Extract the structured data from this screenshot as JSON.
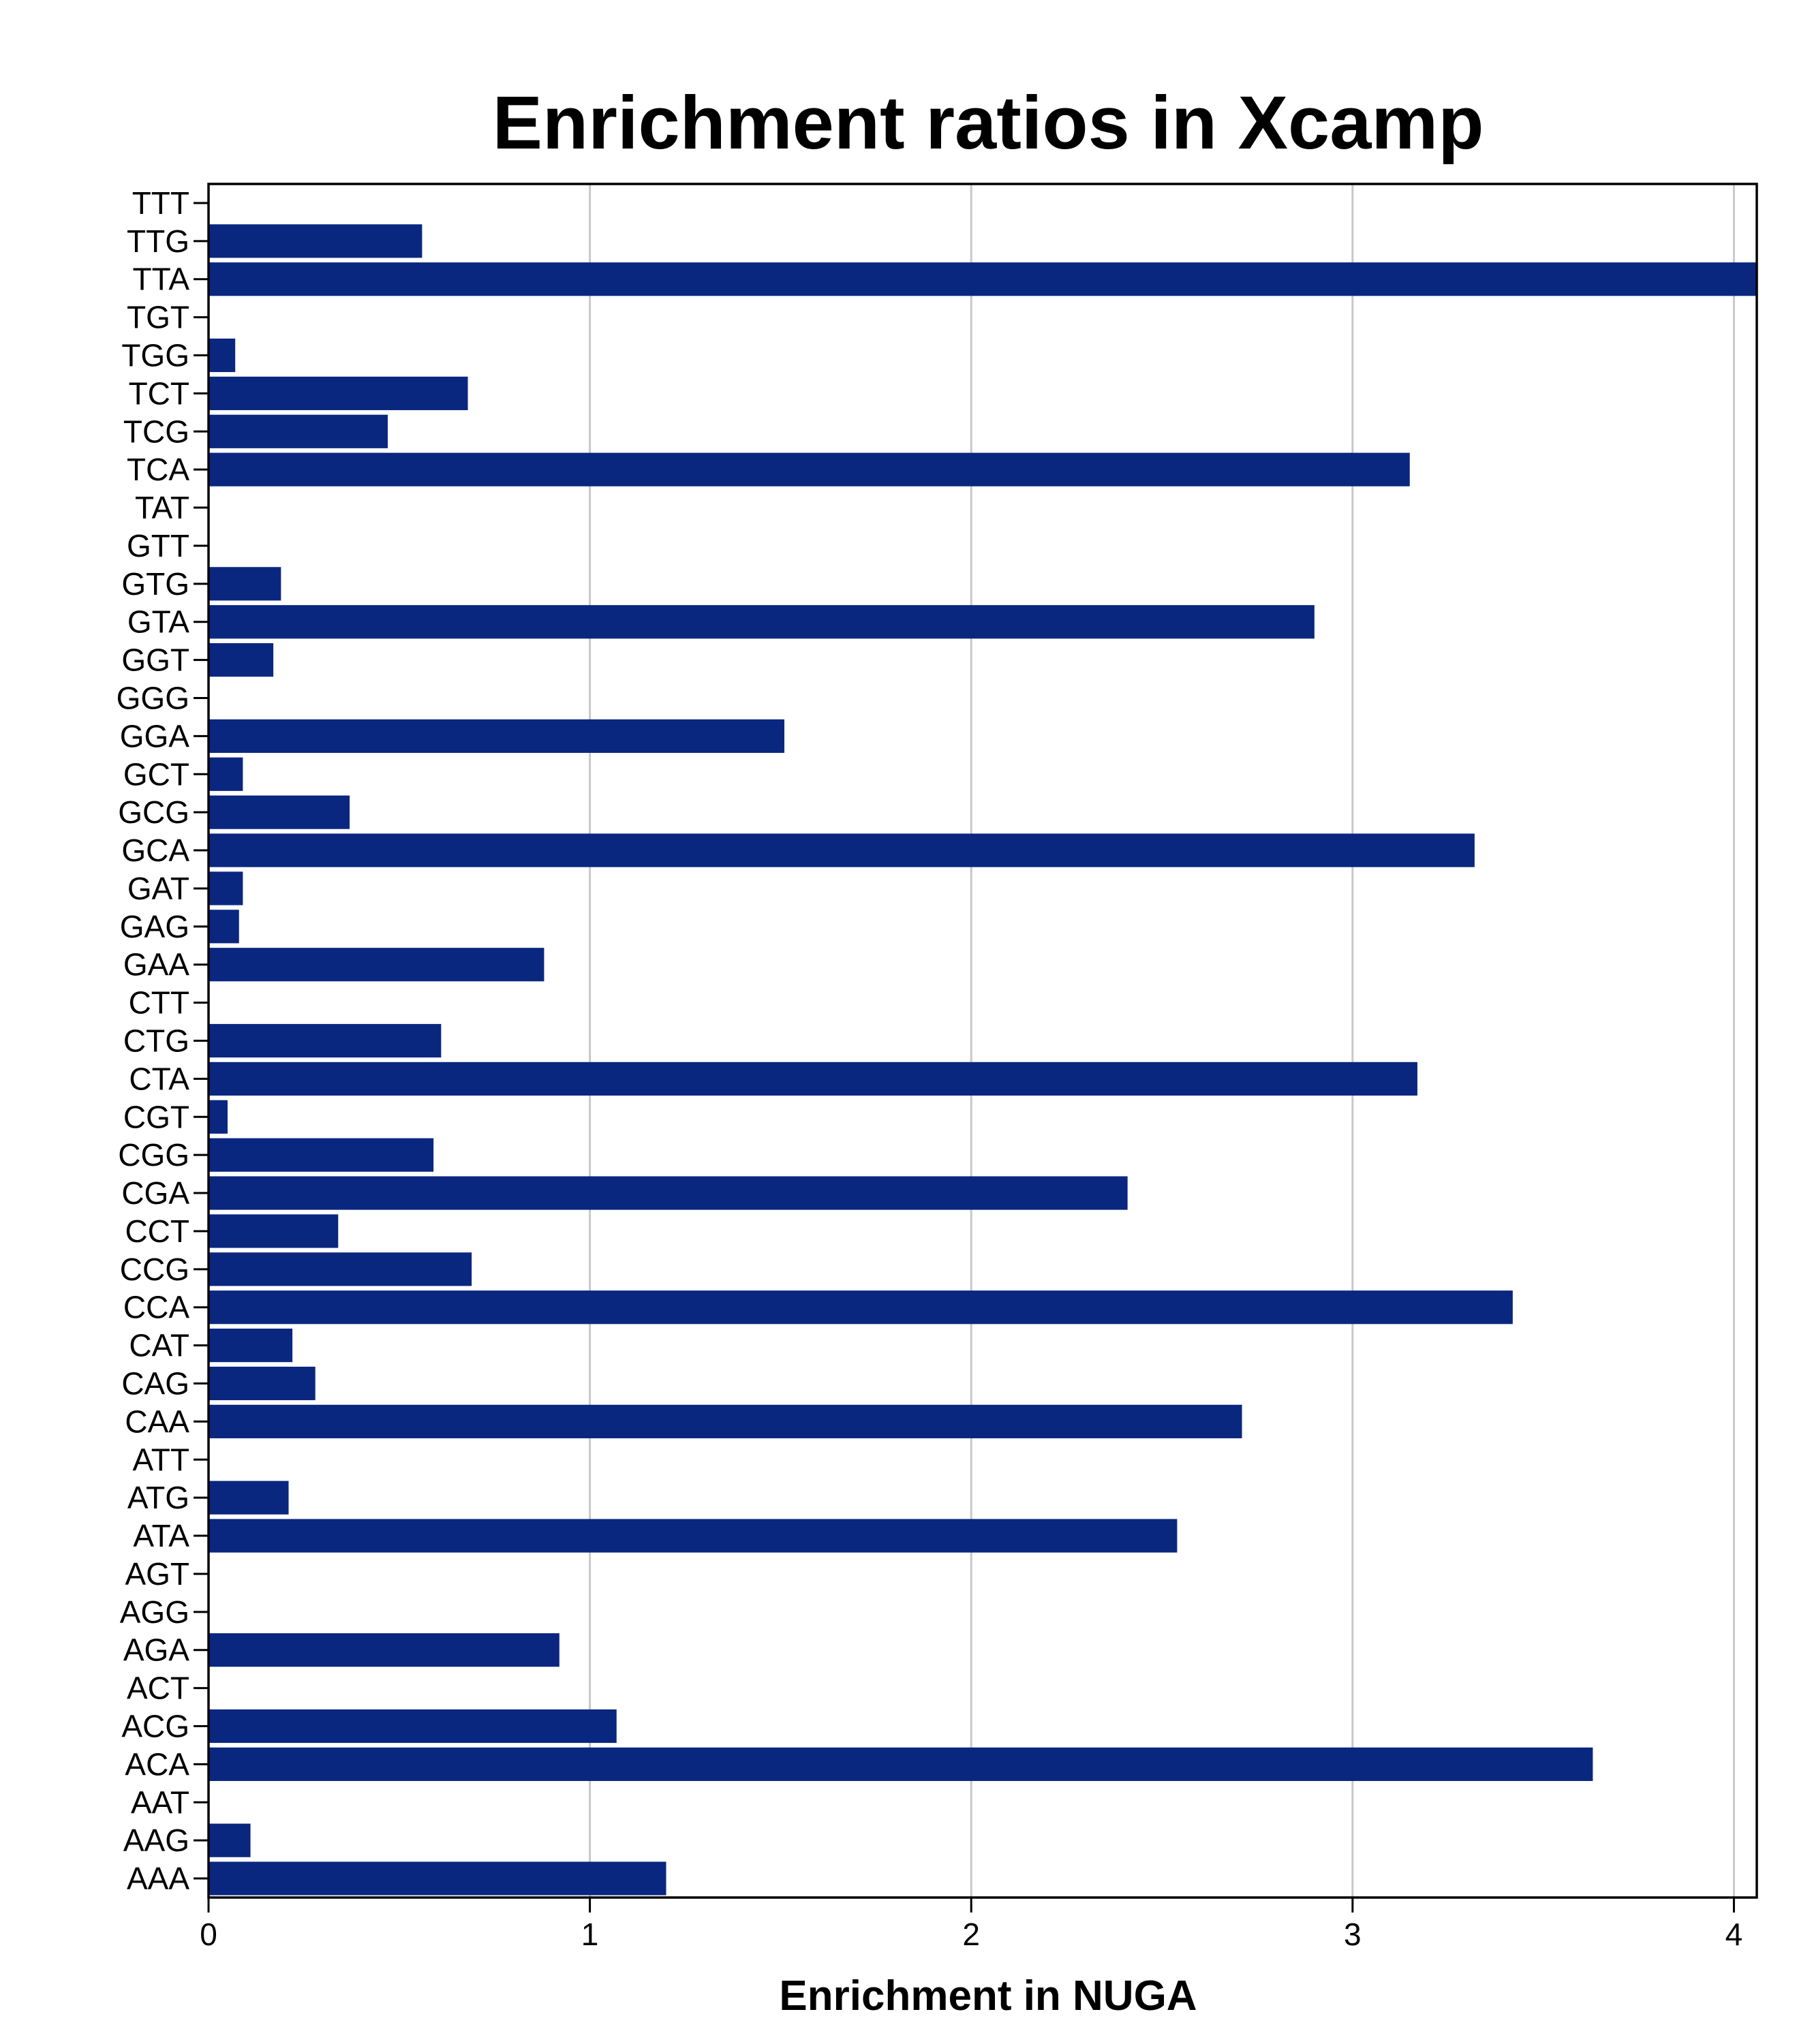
{
  "chart_data": {
    "type": "bar",
    "orientation": "horizontal",
    "title": "Enrichment ratios in Xcamp",
    "xlabel": "Enrichment in NUGA",
    "ylabel": "",
    "xlim": [
      0,
      4.06
    ],
    "xticks": [
      "0",
      "1",
      "2",
      "3",
      "4"
    ],
    "grid": "vertical",
    "bar_color": "#0a2780",
    "categories": [
      "AAA",
      "AAG",
      "AAT",
      "ACA",
      "ACG",
      "ACT",
      "AGA",
      "AGG",
      "AGT",
      "ATA",
      "ATG",
      "ATT",
      "CAA",
      "CAG",
      "CAT",
      "CCA",
      "CCG",
      "CCT",
      "CGA",
      "CGG",
      "CGT",
      "CTA",
      "CTG",
      "CTT",
      "GAA",
      "GAG",
      "GAT",
      "GCA",
      "GCG",
      "GCT",
      "GGA",
      "GGG",
      "GGT",
      "GTA",
      "GTG",
      "GTT",
      "TAT",
      "TCA",
      "TCG",
      "TCT",
      "TGG",
      "TGT",
      "TTA",
      "TTG",
      "TTT"
    ],
    "values": [
      1.2,
      0.11,
      0,
      3.63,
      1.07,
      0,
      0.92,
      0,
      0,
      2.54,
      0.21,
      0,
      2.71,
      0.28,
      0.22,
      3.42,
      0.69,
      0.34,
      2.41,
      0.59,
      0.05,
      3.17,
      0.61,
      0,
      0.88,
      0.08,
      0.09,
      3.32,
      0.37,
      0.09,
      1.51,
      0,
      0.17,
      2.9,
      0.19,
      0,
      0,
      3.15,
      0.47,
      0.68,
      0.07,
      0,
      4.06,
      0.56,
      0
    ]
  }
}
